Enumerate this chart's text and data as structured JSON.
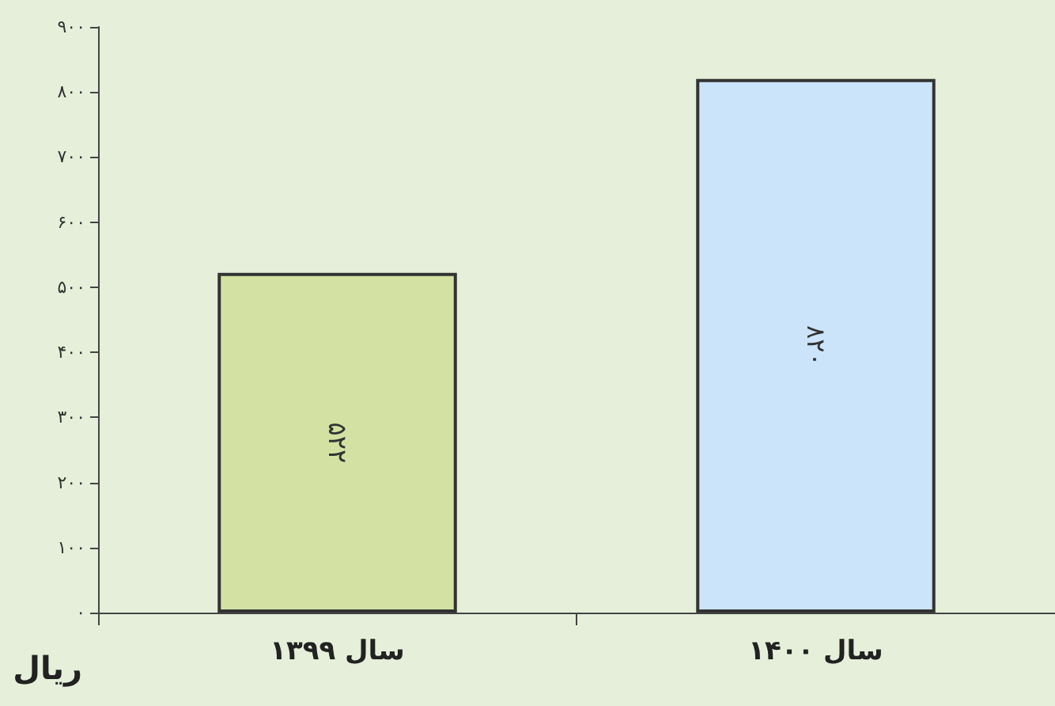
{
  "chart_data": {
    "type": "bar",
    "ylabel": "ریال",
    "categories": [
      "سال ۱۳۹۹",
      "سال ۱۴۰۰"
    ],
    "values": [
      522,
      820
    ],
    "colors": [
      "#d3e2a3",
      "#cce4fa"
    ],
    "value_labels": [
      "۵۲۲",
      "۸۲۰"
    ],
    "ylim": [
      0,
      900
    ],
    "yticks": [
      {
        "value": 0,
        "label": "۰"
      },
      {
        "value": 100,
        "label": "۱۰۰"
      },
      {
        "value": 200,
        "label": "۲۰۰"
      },
      {
        "value": 300,
        "label": "۳۰۰"
      },
      {
        "value": 400,
        "label": "۴۰۰"
      },
      {
        "value": 500,
        "label": "۵۰۰"
      },
      {
        "value": 600,
        "label": "۶۰۰"
      },
      {
        "value": 700,
        "label": "۷۰۰"
      },
      {
        "value": 800,
        "label": "۸۰۰"
      },
      {
        "value": 900,
        "label": "۹۰۰"
      }
    ],
    "grid": false
  }
}
